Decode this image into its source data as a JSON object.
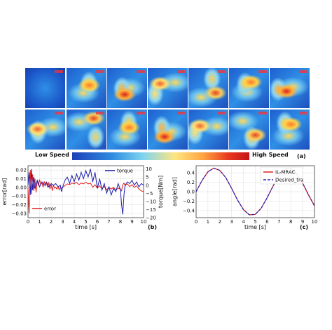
{
  "speed_maps": {
    "low_label": "Low Speed",
    "high_label": "High Speed",
    "panel_label": "(a)"
  },
  "colors": {
    "error": "#e02020",
    "torque": "#1f1fb0",
    "il_mrac": "#e02020",
    "desired": "#1f1fb0"
  },
  "chart_data": [
    {
      "type": "line",
      "panel_label": "(b)",
      "xlabel": "time [s]",
      "ylabel": "error[rad]",
      "y2label": "torque[Nm]",
      "xlim": [
        0,
        10
      ],
      "ylim": [
        -0.035,
        0.025
      ],
      "y2lim": [
        -20,
        12
      ],
      "x_ticks": [
        0,
        1,
        2,
        3,
        4,
        5,
        6,
        7,
        8,
        9,
        10
      ],
      "y_ticks": [
        0.02,
        0.01,
        0.0,
        -0.01,
        -0.02,
        -0.03
      ],
      "y_tick_labels": [
        "0.02",
        "0.01",
        "0.00",
        "−0.01",
        "−0.02",
        "−0.03"
      ],
      "y2_ticks": [
        10,
        5,
        0,
        -5,
        -10,
        -15,
        -20
      ],
      "y2_tick_labels": [
        "10",
        "5",
        "0",
        "−5",
        "−10",
        "−15",
        "−20"
      ],
      "grid": true,
      "series": [
        {
          "name": "error",
          "axis": "left",
          "x": [
            0,
            0.1,
            0.2,
            0.3,
            0.4,
            0.5,
            0.6,
            0.7,
            0.8,
            0.9,
            1.0,
            1.1,
            1.2,
            1.3,
            1.4,
            1.5,
            1.6,
            1.7,
            1.8,
            1.9,
            2.0,
            2.1,
            2.2,
            2.3,
            2.4,
            2.5,
            2.6,
            2.7,
            2.8,
            2.9,
            3.0,
            3.2,
            3.4,
            3.6,
            3.8,
            4.0,
            4.2,
            4.4,
            4.6,
            4.8,
            5.0,
            5.2,
            5.4,
            5.6,
            5.8,
            6.0,
            6.2,
            6.4,
            6.6,
            6.8,
            7.0,
            7.2,
            7.4,
            7.6,
            7.8,
            8.0,
            8.1,
            8.2,
            8.3,
            8.4,
            8.6,
            8.8,
            9.0,
            9.2,
            9.4,
            9.6,
            9.8,
            10.0
          ],
          "values": [
            0.0,
            -0.03,
            0.02,
            -0.008,
            0.015,
            -0.004,
            0.01,
            -0.006,
            0.008,
            0.002,
            0.009,
            0.003,
            0.006,
            0.0,
            0.007,
            0.002,
            0.005,
            0.0,
            0.006,
            -0.002,
            0.004,
            -0.004,
            0.003,
            -0.001,
            0.0,
            -0.002,
            0.001,
            -0.003,
            0.0,
            -0.001,
            0.0,
            0.002,
            0.004,
            0.003,
            0.005,
            0.004,
            0.006,
            0.003,
            0.005,
            0.004,
            0.006,
            0.004,
            0.005,
            0.0,
            0.003,
            -0.001,
            0.002,
            -0.002,
            0.001,
            -0.003,
            0.0,
            -0.002,
            0.0,
            -0.003,
            -0.001,
            -0.002,
            -0.004,
            0.003,
            0.005,
            0.002,
            0.004,
            0.001,
            0.003,
            0.0,
            0.002,
            -0.002,
            -0.004,
            -0.005
          ]
        },
        {
          "name": "torque",
          "axis": "right",
          "x": [
            0,
            0.1,
            0.2,
            0.3,
            0.4,
            0.5,
            0.6,
            0.8,
            1.0,
            1.2,
            1.4,
            1.6,
            1.8,
            2.0,
            2.2,
            2.4,
            2.6,
            2.8,
            2.9,
            3.0,
            3.2,
            3.4,
            3.6,
            3.8,
            4.0,
            4.2,
            4.4,
            4.6,
            4.8,
            5.0,
            5.2,
            5.4,
            5.6,
            5.8,
            6.0,
            6.2,
            6.4,
            6.6,
            6.8,
            7.0,
            7.2,
            7.4,
            7.6,
            7.8,
            8.0,
            8.1,
            8.2,
            8.3,
            8.4,
            8.6,
            8.8,
            9.0,
            9.2,
            9.4,
            9.6,
            9.8,
            10.0
          ],
          "values": [
            0,
            8,
            -6,
            10,
            -3,
            5,
            -2,
            3,
            -1,
            2,
            0,
            2,
            -1,
            1,
            0,
            1,
            -1,
            0,
            -4,
            -1,
            3,
            5,
            1,
            6,
            2,
            7,
            3,
            8,
            4,
            9,
            5,
            10,
            2,
            8,
            -2,
            4,
            -3,
            1,
            -5,
            -1,
            -6,
            -2,
            -4,
            1,
            -3,
            -12,
            -18,
            -6,
            0,
            2,
            1,
            3,
            0,
            2,
            -1,
            1,
            0
          ]
        }
      ]
    },
    {
      "type": "line",
      "panel_label": "(c)",
      "xlabel": "time [s]",
      "ylabel": "angle[rad]",
      "xlim": [
        0,
        10
      ],
      "ylim": [
        -0.55,
        0.55
      ],
      "x_ticks": [
        0,
        1,
        2,
        3,
        4,
        5,
        6,
        7,
        8,
        9,
        10
      ],
      "y_ticks": [
        0.4,
        0.2,
        0.0,
        -0.2,
        -0.4
      ],
      "y_tick_labels": [
        "0.4",
        "0.2",
        "0.0",
        "−0.2",
        "−0.4"
      ],
      "grid": true,
      "legend_position": "top-right",
      "series": [
        {
          "name": "IL-MRAC",
          "x": [
            0,
            0.5,
            1.0,
            1.5,
            2.0,
            2.5,
            3.0,
            3.5,
            4.0,
            4.5,
            5.0,
            5.5,
            6.0,
            6.5,
            7.0,
            7.5,
            8.0,
            8.5,
            9.0,
            9.5,
            10.0
          ],
          "values": [
            0.0,
            0.24,
            0.42,
            0.5,
            0.45,
            0.3,
            0.07,
            -0.18,
            -0.38,
            -0.49,
            -0.48,
            -0.35,
            -0.13,
            0.12,
            0.34,
            0.48,
            0.49,
            0.38,
            0.18,
            -0.07,
            -0.3
          ]
        },
        {
          "name": "Desired_tra",
          "x": [
            0,
            0.5,
            1.0,
            1.5,
            2.0,
            2.5,
            3.0,
            3.5,
            4.0,
            4.5,
            5.0,
            5.5,
            6.0,
            6.5,
            7.0,
            7.5,
            8.0,
            8.5,
            9.0,
            9.5,
            10.0
          ],
          "values": [
            0.0,
            0.24,
            0.42,
            0.5,
            0.45,
            0.3,
            0.07,
            -0.18,
            -0.38,
            -0.49,
            -0.48,
            -0.35,
            -0.13,
            0.12,
            0.34,
            0.48,
            0.49,
            0.38,
            0.18,
            -0.07,
            -0.3
          ]
        }
      ]
    }
  ]
}
